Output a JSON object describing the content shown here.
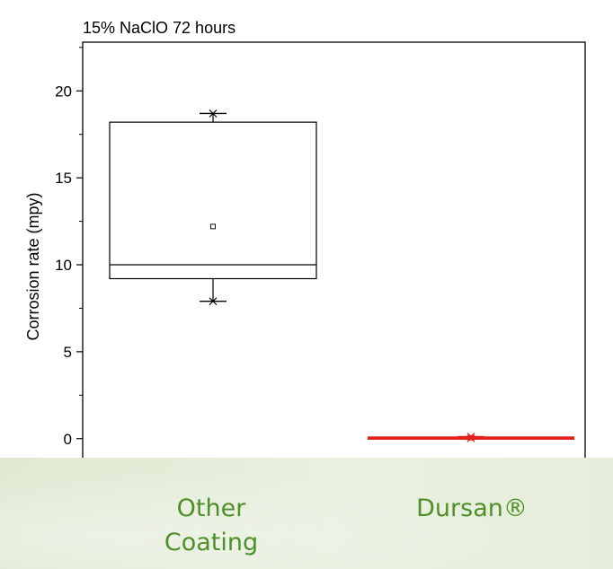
{
  "chart_data": {
    "type": "box",
    "title": "15% NaClO 72 hours",
    "ylabel": "Corrosion rate (mpy)",
    "xlabel": "",
    "ylim": [
      -1.2,
      22.8
    ],
    "yticks": [
      0,
      5,
      10,
      15,
      20
    ],
    "grid": false,
    "categories": [
      "Other\nCoating",
      "Dursan®"
    ],
    "series": [
      {
        "category": "Other\nCoating",
        "min": 7.9,
        "q1": 9.2,
        "median": 10.0,
        "q3": 18.2,
        "max": 18.7,
        "mean": 12.2,
        "color": "#000000"
      },
      {
        "category": "Dursan®",
        "min": 0.02,
        "q1": 0.03,
        "median": 0.05,
        "q3": 0.07,
        "max": 0.12,
        "mean": 0.05,
        "color": "#e0231b"
      }
    ]
  },
  "colors": {
    "label_text": "#4e8f2a",
    "label_band": "#e3ecd8"
  }
}
